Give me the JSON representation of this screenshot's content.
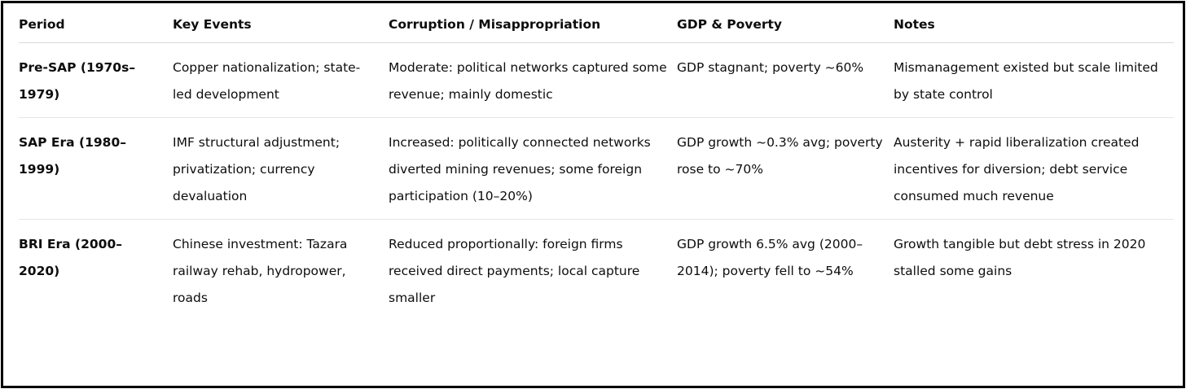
{
  "table": {
    "headers": [
      "Period",
      "Key Events",
      "Corruption / Misappropriation",
      "GDP & Poverty",
      "Notes"
    ],
    "rows": [
      {
        "period": "Pre-SAP (1970s–1979)",
        "key_events": "Copper nationalization; state-led development",
        "corruption": "Moderate: political networks captured some revenue; mainly domestic",
        "gdp_poverty": "GDP stagnant; poverty ~60%",
        "notes": "Mismanagement existed but scale limited by state control"
      },
      {
        "period": "SAP Era (1980–1999)",
        "key_events": "IMF structural adjustment; privatization; currency devaluation",
        "corruption": "Increased: politically connected networks diverted mining revenues; some foreign participation (10–20%)",
        "gdp_poverty": "GDP growth ~0.3% avg; poverty rose to ~70%",
        "notes": "Austerity + rapid liberalization created incentives for diversion; debt service consumed much revenue"
      },
      {
        "period": "BRI Era (2000–2020)",
        "key_events": "Chinese investment: Tazara railway rehab, hydropower, roads",
        "corruption": "Reduced proportionally: foreign firms received direct payments; local capture smaller",
        "gdp_poverty": "GDP growth 6.5% avg (2000–2014); poverty fell to ~54%",
        "notes": "Growth tangible but debt stress in 2020 stalled some gains"
      }
    ]
  }
}
